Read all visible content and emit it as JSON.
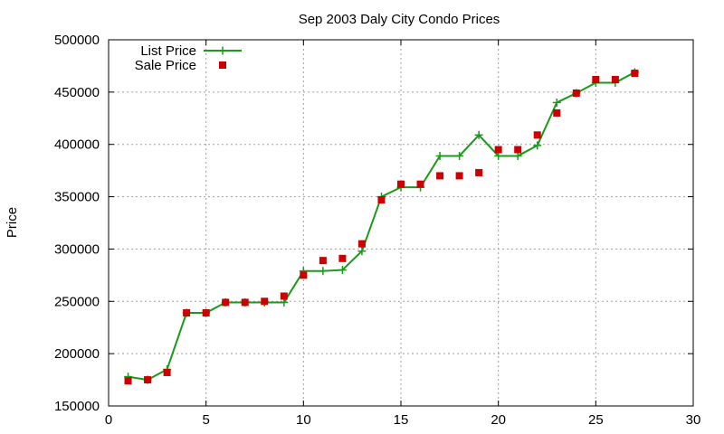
{
  "chart_data": {
    "type": "line",
    "title": "Sep 2003 Daly City Condo Prices",
    "xlabel": "",
    "ylabel": "Price",
    "xlim": [
      0,
      30
    ],
    "ylim": [
      150000,
      500000
    ],
    "x_ticks": [
      0,
      5,
      10,
      15,
      20,
      25,
      30
    ],
    "y_ticks": [
      150000,
      200000,
      250000,
      300000,
      350000,
      400000,
      450000,
      500000
    ],
    "grid": true,
    "legend_position": "top-left",
    "series": [
      {
        "name": "List Price",
        "style": "line-with-plus-markers",
        "color": "#1a9a1a",
        "x": [
          1,
          2,
          3,
          4,
          5,
          6,
          7,
          8,
          9,
          10,
          11,
          12,
          13,
          14,
          15,
          16,
          17,
          18,
          19,
          20,
          21,
          22,
          23,
          24,
          25,
          26,
          27
        ],
        "y": [
          178000,
          175000,
          185000,
          239000,
          239000,
          249000,
          249000,
          249000,
          249000,
          279000,
          279000,
          280000,
          298000,
          350000,
          359000,
          359000,
          389000,
          389000,
          409000,
          389000,
          389000,
          399000,
          440000,
          449000,
          459000,
          459000,
          469000
        ]
      },
      {
        "name": "Sale Price",
        "style": "square-points",
        "color": "#cc0000",
        "x": [
          1,
          2,
          3,
          4,
          5,
          6,
          7,
          8,
          9,
          10,
          11,
          12,
          13,
          14,
          15,
          16,
          17,
          18,
          19,
          20,
          21,
          22,
          23,
          24,
          25,
          26,
          27
        ],
        "y": [
          174000,
          175000,
          182000,
          239000,
          239000,
          249000,
          249000,
          250000,
          255000,
          275000,
          289000,
          291000,
          305000,
          347000,
          362000,
          362000,
          370000,
          370000,
          373000,
          395000,
          395000,
          409000,
          430000,
          449000,
          462000,
          462000,
          468000
        ]
      }
    ]
  }
}
